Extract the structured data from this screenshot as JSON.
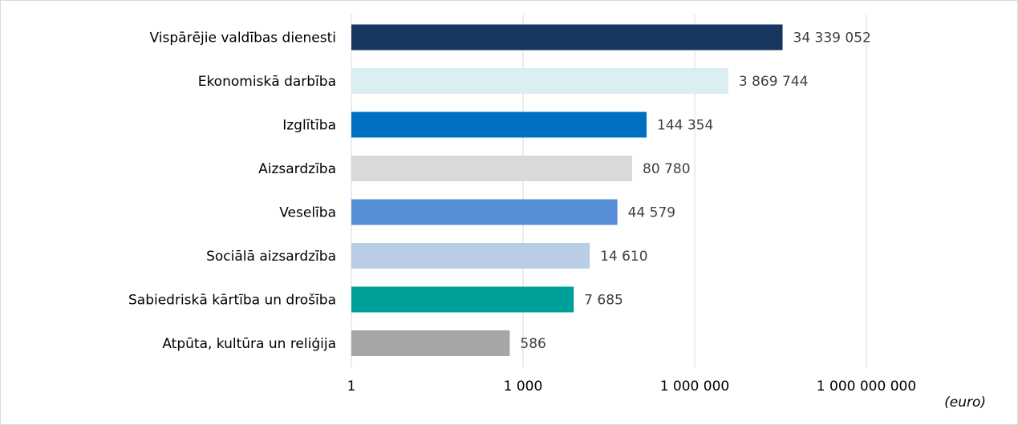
{
  "chart_data": {
    "type": "bar",
    "orientation": "horizontal",
    "scale": "log10",
    "categories": [
      "Vispārējie valdības dienesti",
      "Ekonomiskā darbība",
      "Izglītība",
      "Aizsardzība",
      "Veselība",
      "Sociālā aizsardzība",
      "Sabiedriskā kārtība un drošība",
      "Atpūta, kultūra un reliģija"
    ],
    "values": [
      34339052,
      3869744,
      144354,
      80780,
      44579,
      14610,
      7685,
      586
    ],
    "value_labels": [
      "34 339 052",
      "3 869 744",
      "144 354",
      "80 780",
      "44 579",
      "14 610",
      "7 685",
      "586"
    ],
    "colors": [
      "#17375e",
      "#dbeef4",
      "#0070c0",
      "#d9d9d9",
      "#558ed5",
      "#b9cde5",
      "#00a09a",
      "#a6a6a6"
    ],
    "xlim": [
      1,
      1000000000
    ],
    "ticks": [
      1,
      1000,
      1000000,
      1000000000
    ],
    "tick_labels": [
      "1",
      "1 000",
      "1 000 000",
      "1 000 000 000"
    ],
    "grid": true,
    "unit_label": "(euro)"
  }
}
